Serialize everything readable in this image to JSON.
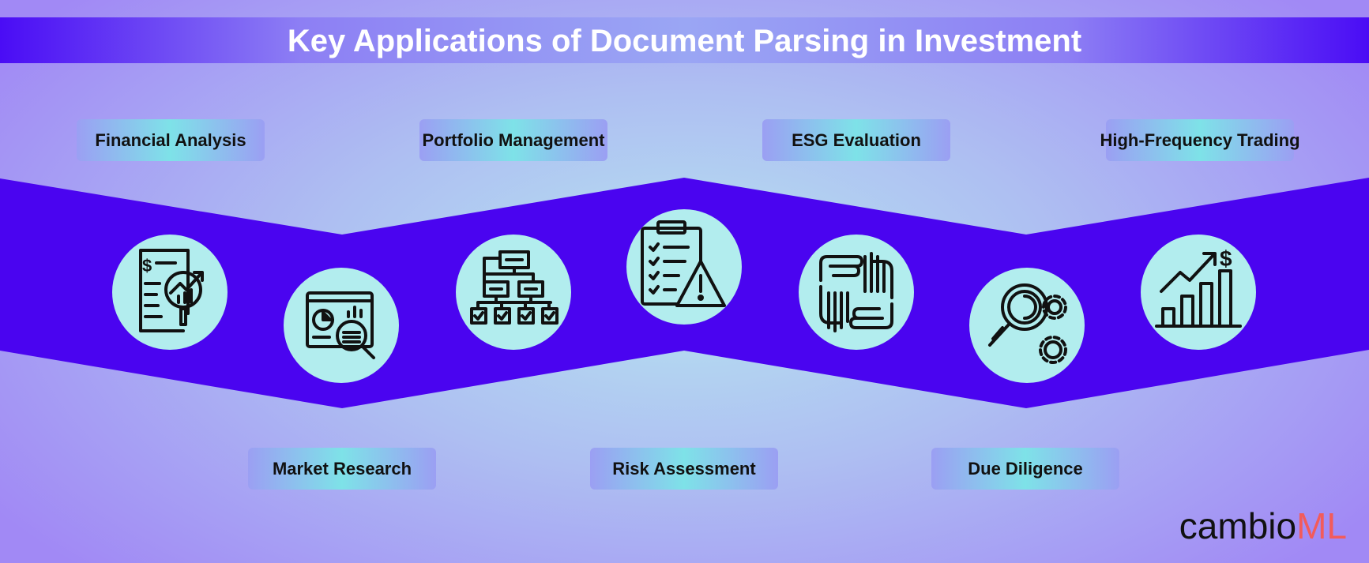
{
  "title": "Key Applications of Document Parsing in Investment",
  "colors": {
    "band": "#4a04f0",
    "circle": "#b2edee",
    "icon_stroke": "#111111",
    "logo_dark": "#111111",
    "logo_accent": "#f25b5b"
  },
  "top_labels": [
    "Financial Analysis",
    "Portfolio Management",
    "ESG Evaluation",
    "High-Frequency Trading"
  ],
  "bottom_labels": [
    "Market Research",
    "Risk Assessment",
    "Due Diligence"
  ],
  "icons": [
    "financial-report-icon",
    "market-research-icon",
    "portfolio-hierarchy-icon",
    "risk-checklist-icon",
    "esg-hands-icon",
    "due-diligence-search-icon",
    "trading-growth-chart-icon"
  ],
  "logo": {
    "part1": "cambio",
    "part2": "ML"
  }
}
